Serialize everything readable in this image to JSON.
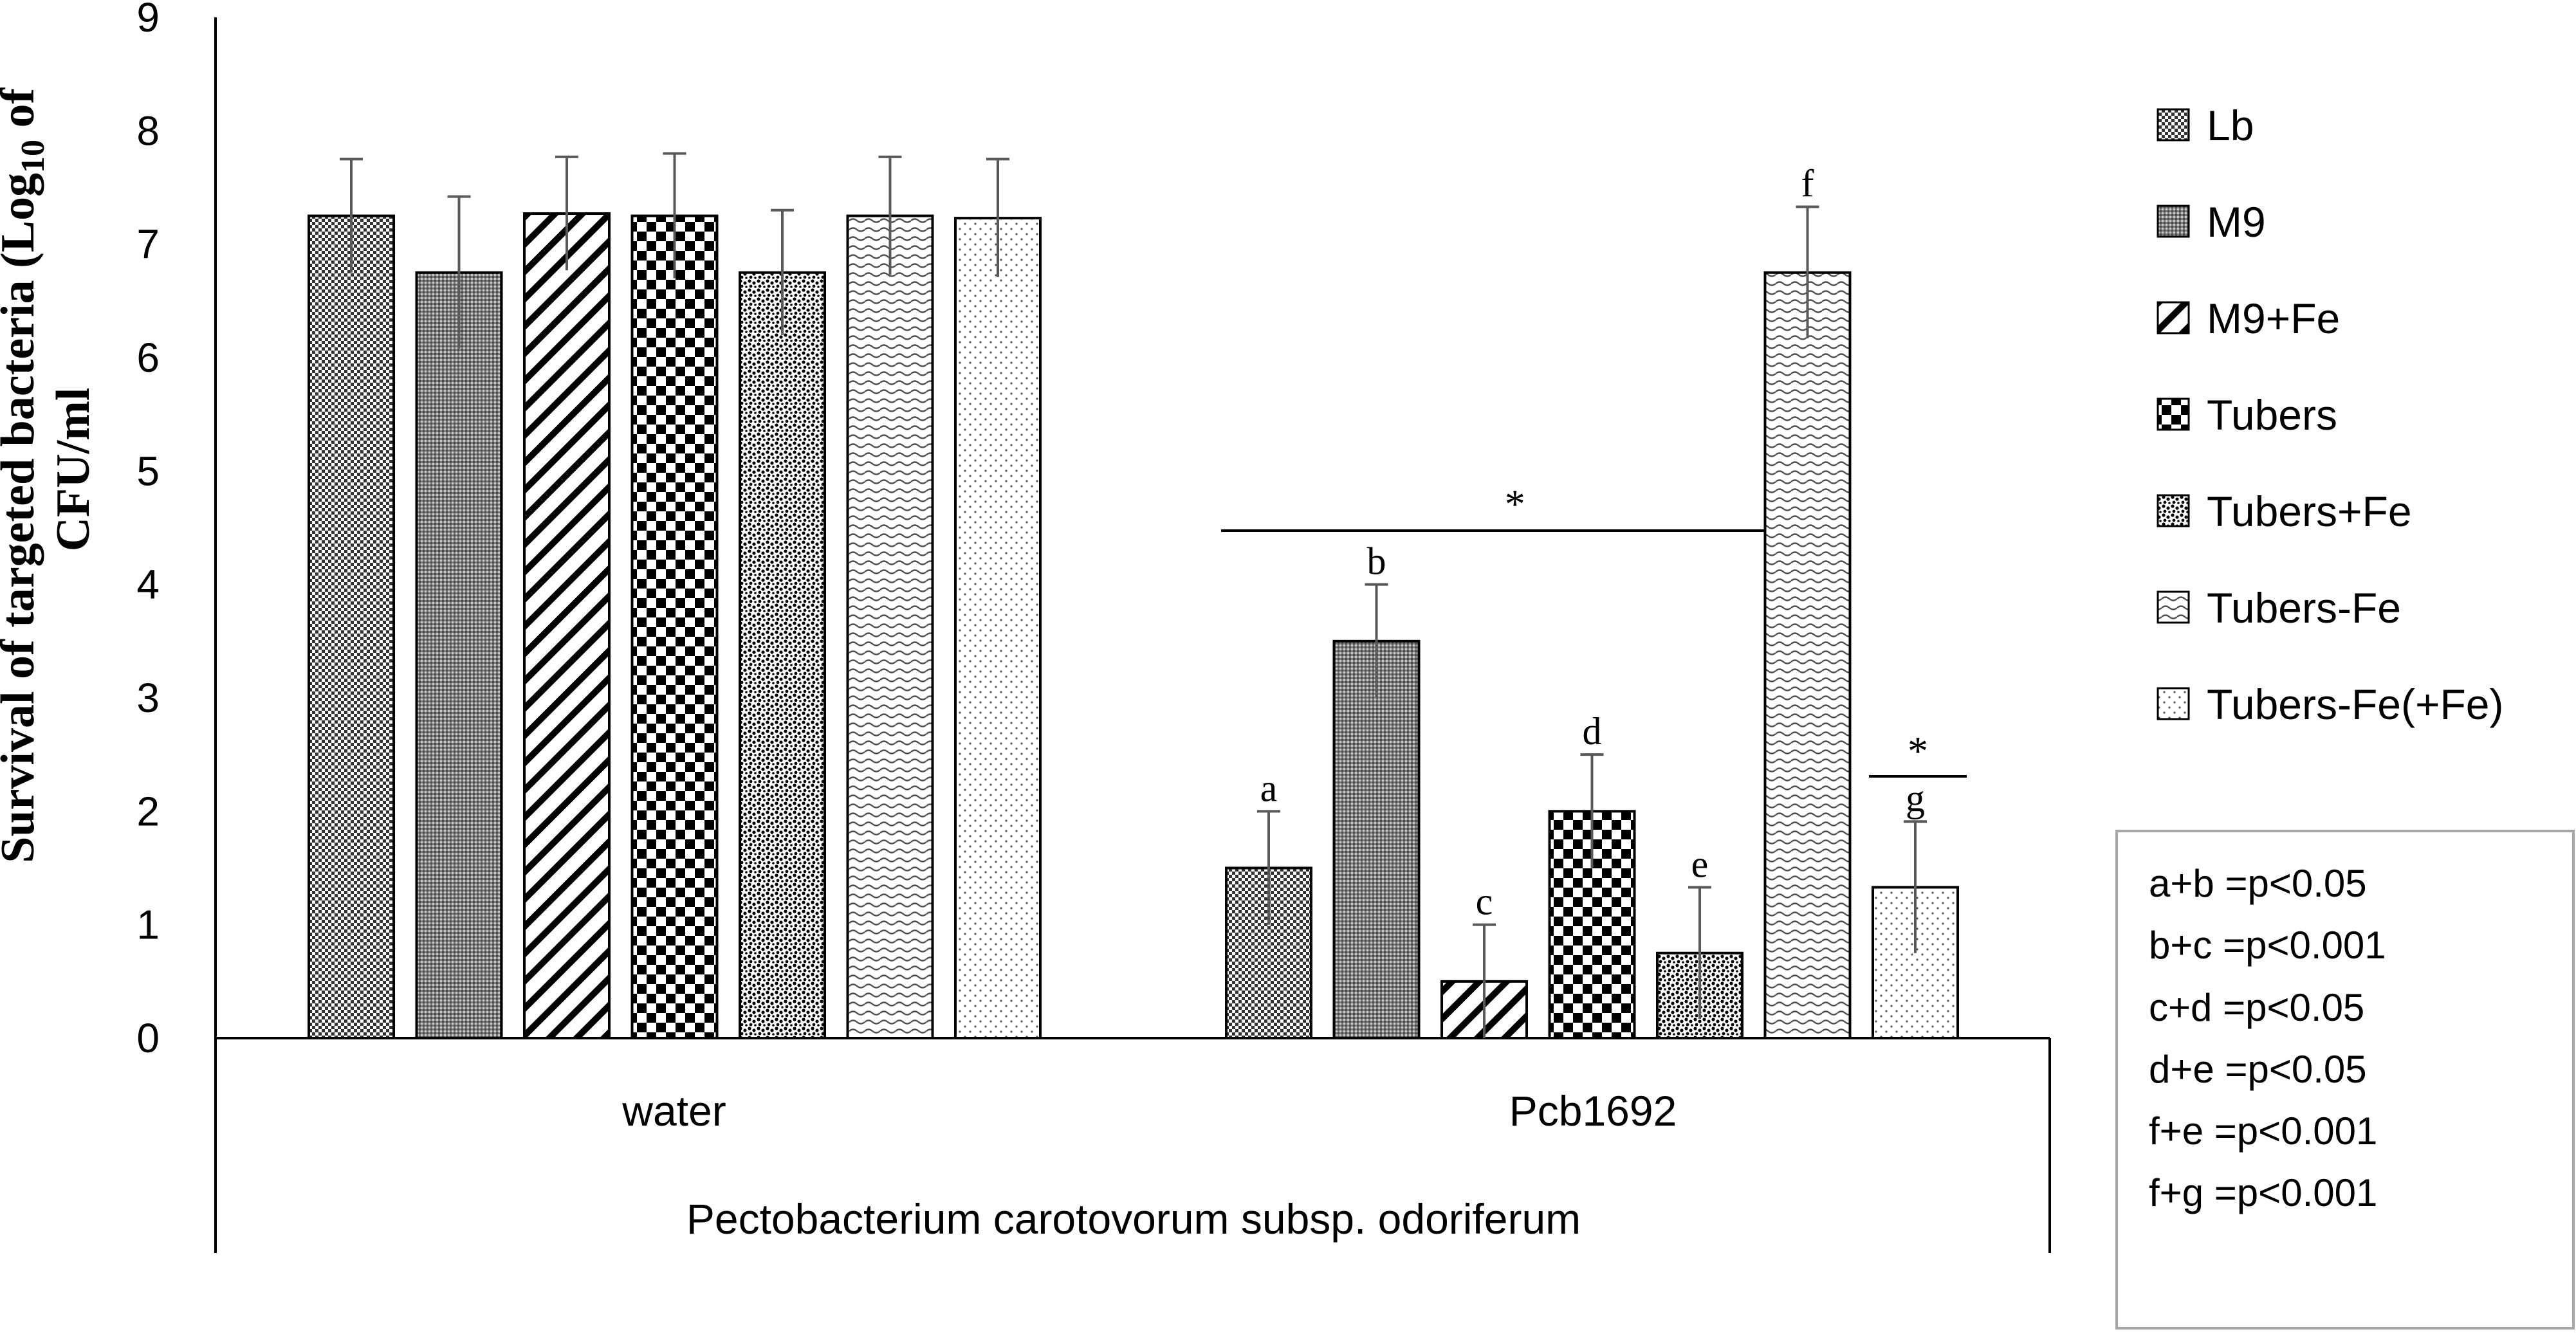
{
  "chart_data": {
    "type": "bar",
    "title": "",
    "ylabel_line1": "Survival of targeted bacteria (Log",
    "ylabel_sub": "10",
    "ylabel_after_sub": " of",
    "ylabel_line2": "CFU/ml",
    "xlabel": "Pectobacterium carotovorum subsp. odoriferum",
    "ylim": [
      0,
      9
    ],
    "yticks": [
      "0",
      "1",
      "2",
      "3",
      "4",
      "5",
      "6",
      "7",
      "8",
      "9"
    ],
    "categories": [
      "water",
      "Pcb1692"
    ],
    "legend_position": "right",
    "series": [
      {
        "name": "Lb",
        "pattern": "checker-fine",
        "values": [
          7.25,
          1.5
        ],
        "errors": [
          0.5,
          0.5
        ],
        "letters": [
          "",
          "a"
        ]
      },
      {
        "name": "M9",
        "pattern": "dots-dense",
        "values": [
          6.75,
          3.5
        ],
        "errors": [
          0.67,
          0.5
        ],
        "letters": [
          "",
          "b"
        ]
      },
      {
        "name": "M9+Fe",
        "pattern": "diagonal",
        "values": [
          7.27,
          0.5
        ],
        "errors": [
          0.5,
          0.5
        ],
        "letters": [
          "",
          "c"
        ]
      },
      {
        "name": "Tubers",
        "pattern": "checker-large",
        "values": [
          7.25,
          2.0
        ],
        "errors": [
          0.55,
          0.5
        ],
        "letters": [
          "",
          "d"
        ]
      },
      {
        "name": "Tubers+Fe",
        "pattern": "speckle",
        "values": [
          6.75,
          0.75
        ],
        "errors": [
          0.55,
          0.58
        ],
        "letters": [
          "",
          "e"
        ]
      },
      {
        "name": "Tubers-Fe",
        "pattern": "wave",
        "values": [
          7.25,
          6.75
        ],
        "errors": [
          0.52,
          0.58
        ],
        "letters": [
          "",
          "f"
        ]
      },
      {
        "name": "Tubers-Fe(+Fe)",
        "pattern": "sparse-dots",
        "values": [
          7.23,
          1.33
        ],
        "errors": [
          0.52,
          0.58
        ],
        "letters": [
          "",
          "g"
        ]
      }
    ],
    "annotations": {
      "bracket_star": "*",
      "small_star": "*"
    },
    "significance_notes": [
      "a+b =p<0.05",
      "b+c =p<0.001",
      "c+d =p<0.05",
      "d+e =p<0.05",
      "f+e =p<0.001",
      "f+g =p<0.001"
    ]
  }
}
